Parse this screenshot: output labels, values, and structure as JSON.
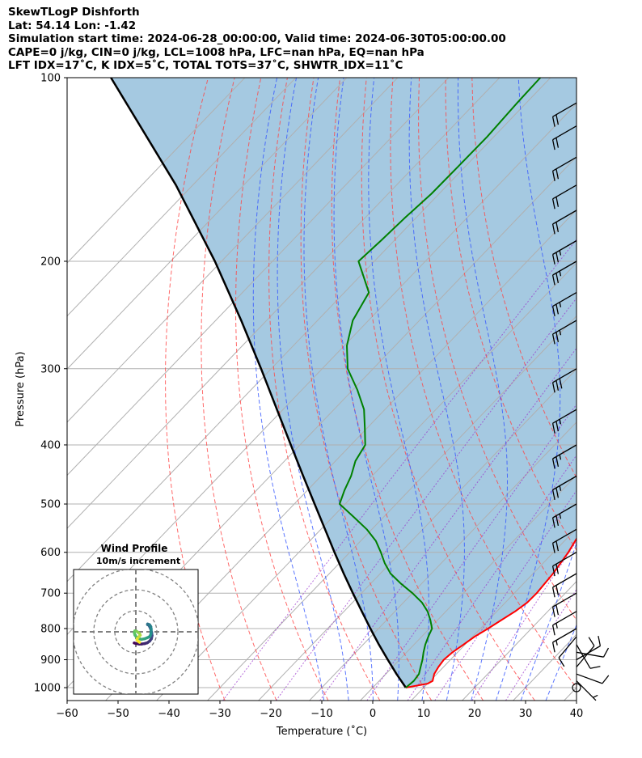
{
  "header": {
    "line1": "SkewTLogP Dishforth",
    "line2": "Lat: 54.14   Lon: -1.42",
    "line3": "Simulation start time: 2024-06-28_00:00:00, Valid time: 2024-06-30T05:00:00.00",
    "line4": "CAPE=0 j/kg, CIN=0 j/kg, LCL=1008 hPa, LFC=nan hPa, EQ=nan hPa",
    "line5": "LFT IDX=17˚C, K IDX=5˚C, TOTAL TOTS=37˚C, SHWTR_IDX=11˚C"
  },
  "chart_data": {
    "type": "skewt",
    "xlabel": "Temperature (˚C)",
    "ylabel": "Pressure (hPa)",
    "xlim": [
      -60,
      40
    ],
    "ylim": [
      1050,
      100
    ],
    "x_ticks": [
      -60,
      -50,
      -40,
      -30,
      -20,
      -10,
      0,
      10,
      20,
      30,
      40
    ],
    "x_tick_labels": [
      "−60",
      "−50",
      "−40",
      "−30",
      "−20",
      "−10",
      "0",
      "10",
      "20",
      "30",
      "40"
    ],
    "y_ticks": [
      1000,
      900,
      800,
      700,
      600,
      500,
      400,
      300,
      200,
      100
    ],
    "y_tick_labels": [
      "1000",
      "900",
      "800",
      "700",
      "600",
      "500",
      "400",
      "300",
      "200",
      "100"
    ],
    "log_pressure": true,
    "grid": true,
    "temperature": {
      "color": "#ff0000",
      "p": [
        1000,
        985,
        975,
        950,
        925,
        900,
        875,
        850,
        825,
        800,
        775,
        750,
        725,
        700,
        650,
        600,
        550,
        500,
        450,
        400,
        375,
        350,
        325,
        300,
        275,
        250,
        225,
        200,
        185,
        175,
        165,
        155,
        145,
        135,
        125,
        115,
        110,
        105,
        100
      ],
      "t": [
        6.5,
        10,
        10.5,
        9.5,
        9,
        8.7,
        9,
        9.7,
        10.4,
        11.5,
        12.5,
        13.6,
        14.3,
        14.4,
        13.9,
        12.9,
        11.3,
        8.9,
        5.7,
        1.8,
        -0.6,
        -2.8,
        -4.7,
        -6.9,
        -9.2,
        -11.7,
        -13.2,
        -14.6,
        -17,
        -19.2,
        -21,
        -24,
        -27,
        -30,
        -32.1,
        -34.4,
        -36.8,
        -38.9,
        -40.1
      ]
    },
    "dewpoint": {
      "color": "#008000",
      "p": [
        1000,
        975,
        950,
        925,
        900,
        875,
        850,
        825,
        800,
        775,
        750,
        725,
        700,
        675,
        650,
        625,
        600,
        575,
        550,
        525,
        500,
        475,
        450,
        425,
        400,
        375,
        350,
        325,
        300,
        275,
        250,
        225,
        200,
        185,
        170,
        155,
        140,
        125,
        110,
        100
      ],
      "t": [
        6.5,
        6.8,
        6.5,
        5.5,
        4.5,
        3.3,
        2.2,
        1.3,
        0.5,
        -1.4,
        -3.6,
        -6.4,
        -10,
        -14.1,
        -18,
        -21.1,
        -23.9,
        -27,
        -31,
        -35.9,
        -41.1,
        -42.7,
        -44.1,
        -46.1,
        -47.2,
        -50.5,
        -54.1,
        -59.1,
        -65,
        -69.5,
        -73.1,
        -75.2,
        -83.1,
        -82.6,
        -82.2,
        -81.5,
        -81.4,
        -81.3,
        -81.8,
        -82
      ]
    },
    "parcel": {
      "color": "#000000",
      "p": [
        1000,
        950,
        900,
        850,
        800,
        750,
        700,
        650,
        600,
        550,
        500,
        450,
        400,
        350,
        300,
        250,
        200,
        150,
        100
      ],
      "t": [
        6.5,
        2.1,
        -2.3,
        -6.9,
        -11.6,
        -16.5,
        -21.7,
        -27.2,
        -33,
        -39.2,
        -46,
        -53.5,
        -61.8,
        -71.2,
        -82,
        -95,
        -111.3,
        -133.3,
        -166.3
      ]
    },
    "dry_adiabats_theta_C": [
      -30,
      -20,
      -10,
      0,
      10,
      20,
      30,
      40,
      50,
      60,
      70
    ],
    "moist_adiabats_C": [
      -10,
      -5,
      0,
      5,
      10,
      15,
      20,
      25,
      30,
      35
    ],
    "mixing_ratios_gkg": [
      0.4,
      1,
      2,
      4,
      7,
      10,
      16,
      24
    ],
    "wind_barbs": [
      {
        "p": 1000,
        "speed_kt": 0,
        "dir_deg": 0
      },
      {
        "p": 975,
        "speed_kt": 6,
        "dir_deg": 135
      },
      {
        "p": 950,
        "speed_kt": 8,
        "dir_deg": 110
      },
      {
        "p": 925,
        "speed_kt": 10,
        "dir_deg": 40
      },
      {
        "p": 900,
        "speed_kt": 12,
        "dir_deg": 60
      },
      {
        "p": 875,
        "speed_kt": 9,
        "dir_deg": 100
      },
      {
        "p": 850,
        "speed_kt": 12,
        "dir_deg": 150
      },
      {
        "p": 825,
        "speed_kt": 12,
        "dir_deg": 220
      },
      {
        "p": 800,
        "speed_kt": 14,
        "dir_deg": 240
      },
      {
        "p": 750,
        "speed_kt": 15,
        "dir_deg": 240
      },
      {
        "p": 700,
        "speed_kt": 20,
        "dir_deg": 240
      },
      {
        "p": 650,
        "speed_kt": 20,
        "dir_deg": 240
      },
      {
        "p": 600,
        "speed_kt": 20,
        "dir_deg": 240
      },
      {
        "p": 550,
        "speed_kt": 20,
        "dir_deg": 240
      },
      {
        "p": 500,
        "speed_kt": 25,
        "dir_deg": 240
      },
      {
        "p": 450,
        "speed_kt": 25,
        "dir_deg": 240
      },
      {
        "p": 400,
        "speed_kt": 25,
        "dir_deg": 240
      },
      {
        "p": 350,
        "speed_kt": 25,
        "dir_deg": 240
      },
      {
        "p": 300,
        "speed_kt": 30,
        "dir_deg": 240
      },
      {
        "p": 250,
        "speed_kt": 25,
        "dir_deg": 240
      },
      {
        "p": 225,
        "speed_kt": 25,
        "dir_deg": 240
      },
      {
        "p": 200,
        "speed_kt": 25,
        "dir_deg": 240
      },
      {
        "p": 185,
        "speed_kt": 25,
        "dir_deg": 240
      },
      {
        "p": 165,
        "speed_kt": 20,
        "dir_deg": 240
      },
      {
        "p": 150,
        "speed_kt": 20,
        "dir_deg": 240
      },
      {
        "p": 135,
        "speed_kt": 20,
        "dir_deg": 240
      },
      {
        "p": 120,
        "speed_kt": 20,
        "dir_deg": 240
      },
      {
        "p": 110,
        "speed_kt": 20,
        "dir_deg": 240
      }
    ],
    "hodograph": {
      "title": "Wind Profile",
      "subtitle": "10m/s increment",
      "ring_spacing_ms": 10,
      "u": [
        -0.8,
        0.2,
        1.5,
        2.8,
        4.2,
        5.5,
        6.6,
        7.4,
        7.7,
        7.5,
        7,
        6.3,
        5.6,
        5.6,
        6.5,
        7.1,
        7.3,
        7.2,
        6.7,
        5.5,
        4.2,
        2.6,
        1.3,
        0.3,
        -0.4,
        -0.7,
        -0.5,
        0.3,
        1.1,
        1.8,
        2.1,
        1.5,
        0.7,
        0.5,
        1.2,
        1.8
      ],
      "v": [
        -5.3,
        -5.6,
        -5.8,
        -5.8,
        -5.6,
        -5.2,
        -4.4,
        -3.3,
        -1.8,
        -0.2,
        1.5,
        3,
        3.4,
        3.7,
        3.4,
        2.5,
        1.3,
        -1,
        -2.2,
        -2.8,
        -3.3,
        -3.6,
        -3.2,
        -2.5,
        -1.6,
        -0.6,
        0.4,
        0.3,
        -0.3,
        -0.9,
        -1.6,
        -2.3,
        -3.2,
        -3.8,
        -4.6,
        -5
      ],
      "colormap": "viridis"
    }
  }
}
